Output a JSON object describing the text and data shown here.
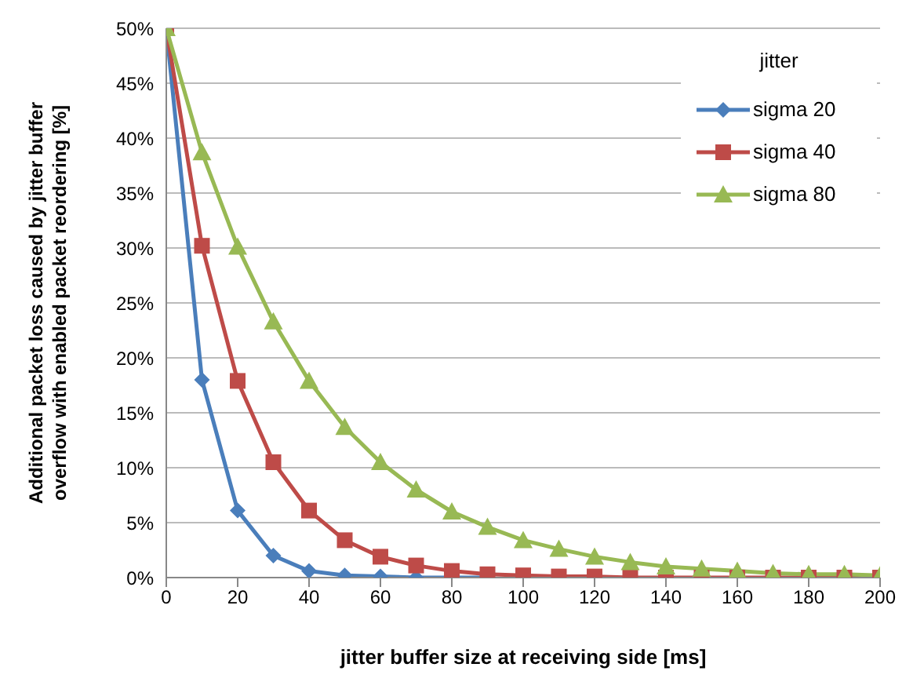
{
  "chart_data": {
    "type": "line",
    "xlabel": "jitter buffer size at receiving side [ms]",
    "ylabel": "Additional packet loss caused by jitter buffer overflow with enabled packet reordering [%]",
    "legend_title": "jitter",
    "legend": "top right",
    "grid": "y",
    "x": [
      0,
      10,
      20,
      30,
      40,
      50,
      60,
      70,
      80,
      90,
      100,
      110,
      120,
      130,
      140,
      150,
      160,
      170,
      180,
      190,
      200
    ],
    "xlim": [
      0,
      200
    ],
    "xticks": [
      0,
      20,
      40,
      60,
      80,
      100,
      120,
      140,
      160,
      180,
      200
    ],
    "ylim": [
      0,
      50
    ],
    "yticks": [
      {
        "value": 0,
        "label": "0%"
      },
      {
        "value": 5,
        "label": "5%"
      },
      {
        "value": 10,
        "label": "10%"
      },
      {
        "value": 15,
        "label": "15%"
      },
      {
        "value": 20,
        "label": "20%"
      },
      {
        "value": 25,
        "label": "25%"
      },
      {
        "value": 30,
        "label": "30%"
      },
      {
        "value": 35,
        "label": "35%"
      },
      {
        "value": 40,
        "label": "40%"
      },
      {
        "value": 45,
        "label": "45%"
      },
      {
        "value": 50,
        "label": "50%"
      }
    ],
    "series": [
      {
        "name": "sigma 20",
        "color": "#4a7ebb",
        "marker": "diamond",
        "values": [
          50,
          18,
          6.1,
          2,
          0.6,
          0.2,
          0.1,
          0,
          0,
          0,
          null,
          null,
          null,
          null,
          null,
          null,
          null,
          null,
          null,
          null,
          null
        ]
      },
      {
        "name": "sigma 40",
        "color": "#be4b48",
        "marker": "square",
        "values": [
          50,
          30.2,
          17.9,
          10.5,
          6.1,
          3.4,
          1.9,
          1.1,
          0.6,
          0.3,
          0.2,
          0.1,
          0.1,
          0,
          0,
          0,
          0,
          0,
          0,
          0,
          0
        ]
      },
      {
        "name": "sigma 80",
        "color": "#98b954",
        "marker": "triangle",
        "values": [
          50,
          38.7,
          30.1,
          23.3,
          17.9,
          13.7,
          10.5,
          8,
          6,
          4.6,
          3.4,
          2.6,
          1.9,
          1.4,
          1,
          0.8,
          0.6,
          0.4,
          0.3,
          0.3,
          0.2
        ]
      }
    ]
  }
}
